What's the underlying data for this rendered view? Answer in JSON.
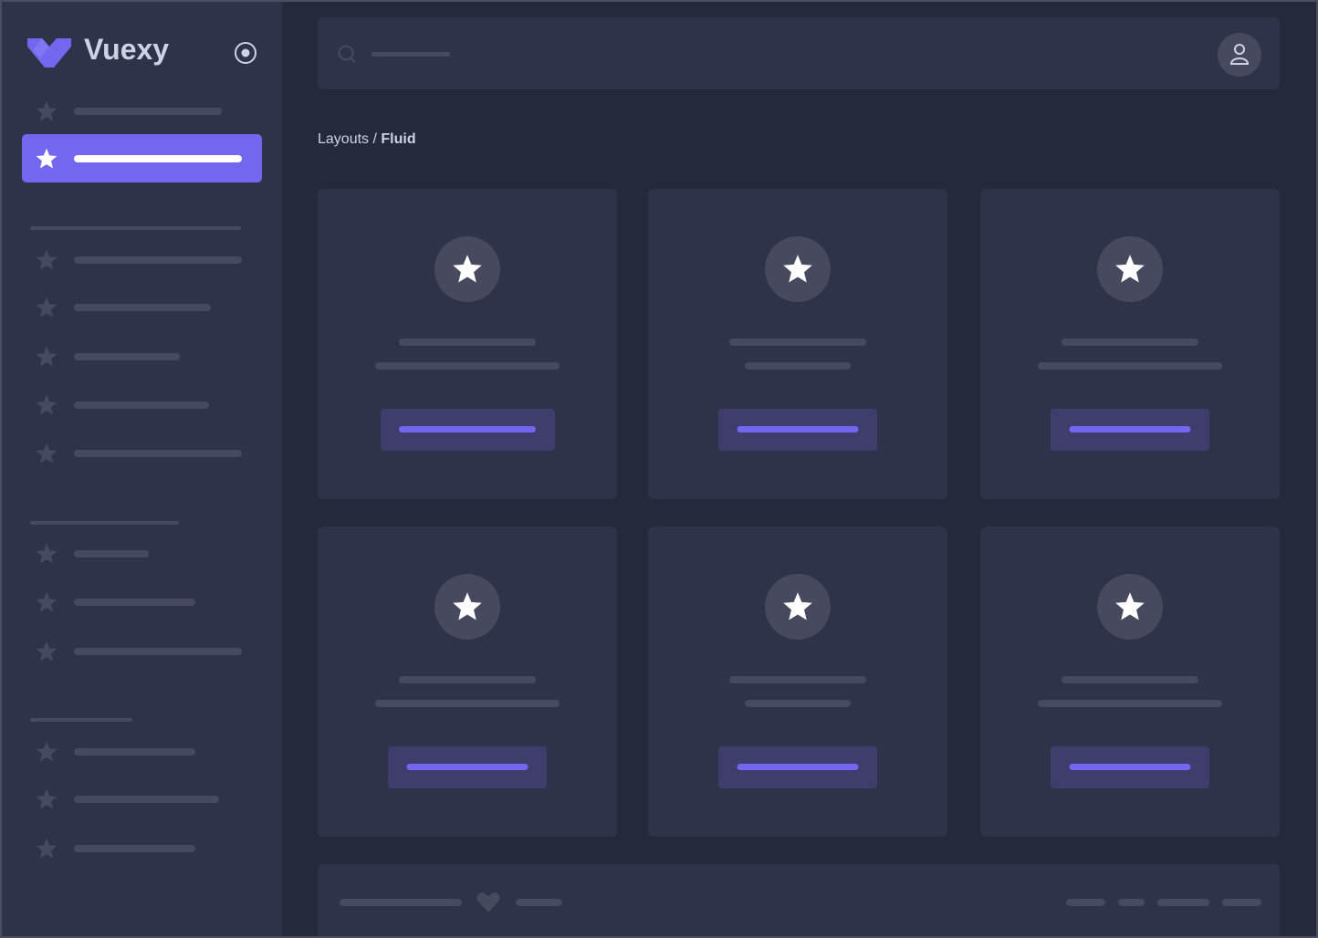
{
  "brand": {
    "name": "Vuexy",
    "logo_color": "#7367f0"
  },
  "sidebar": {
    "toggle_icon": "radio-circle-icon",
    "item_icon": "star-icon",
    "active_index": 1
  },
  "header": {
    "search_icon": "search-icon",
    "avatar_icon": "user-icon"
  },
  "breadcrumb": {
    "parent": "Layouts",
    "separator": " / ",
    "current": "Fluid"
  },
  "cards": {
    "count": 6,
    "icon": "star-icon"
  },
  "footer": {
    "icon": "heart-icon"
  },
  "colors": {
    "accent": "#7367f0",
    "background": "#25293c",
    "surface": "#2f3349",
    "skeleton": "#474a5e"
  }
}
